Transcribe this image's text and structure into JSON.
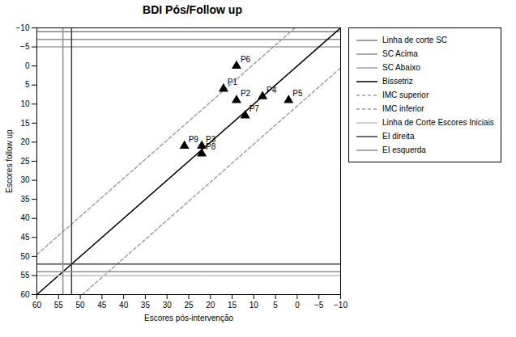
{
  "chart_data": {
    "type": "scatter",
    "title": "BDI Pós/Follow up",
    "xlabel": "Escores pós-intervenção",
    "ylabel": "Escores follow up",
    "xlim": [
      60,
      -10
    ],
    "ylim": [
      60,
      -10
    ],
    "xticks": [
      60,
      55,
      50,
      45,
      40,
      35,
      30,
      25,
      20,
      15,
      10,
      5,
      0,
      -5,
      -10
    ],
    "yticks": [
      -10,
      -5,
      0,
      5,
      10,
      15,
      20,
      25,
      30,
      35,
      40,
      45,
      50,
      55,
      60
    ],
    "grid": false,
    "legend": "right",
    "series": [
      {
        "name": "Linha de corte SC",
        "type": "line",
        "color": "#808080",
        "line_style": "solid",
        "x": [
          60,
          -10
        ],
        "y": [
          -9,
          -9
        ]
      },
      {
        "name": "SC Acima",
        "type": "line",
        "color": "#909090",
        "line_style": "solid",
        "x": [
          60,
          -10
        ],
        "y": [
          -7,
          -7
        ]
      },
      {
        "name": "SC Abaixo",
        "type": "line",
        "color": "#a0a0a0",
        "line_style": "solid",
        "x": [
          60,
          -10
        ],
        "y": [
          -5,
          -5
        ]
      },
      {
        "name": "Bissetriz",
        "type": "line",
        "color": "#000000",
        "line_style": "solid",
        "x": [
          60,
          -10
        ],
        "y": [
          60,
          -10
        ]
      },
      {
        "name": "IMC superior",
        "type": "line",
        "color": "#a0a0a0",
        "line_style": "dashed",
        "x": [
          60,
          0.5
        ],
        "y": [
          49.5,
          -10
        ]
      },
      {
        "name": "IMC inferior",
        "type": "line",
        "color": "#a0a0a0",
        "line_style": "dashed",
        "x": [
          49.5,
          -10
        ],
        "y": [
          60,
          0.5
        ]
      },
      {
        "name": "Linha de Corte Escores Iniciais",
        "type": "line",
        "color": "#c0c0c0",
        "line_style": "solid",
        "x": [
          60,
          -10
        ],
        "y": [
          55,
          55
        ]
      },
      {
        "name": "EI direita",
        "type": "line",
        "color": "#404040",
        "line_style": "solid",
        "x": [
          60,
          -10,
          null,
          52,
          52
        ],
        "y": [
          52,
          52,
          null,
          60,
          -10
        ]
      },
      {
        "name": "EI esquerda",
        "type": "line",
        "color": "#909090",
        "line_style": "solid",
        "x": [
          60,
          -10,
          null,
          54,
          54
        ],
        "y": [
          54,
          54,
          null,
          60,
          -10
        ]
      }
    ],
    "points": {
      "labels": [
        "P1",
        "P2",
        "P3",
        "P4",
        "P5",
        "P6",
        "P7",
        "P8",
        "P9"
      ],
      "x": [
        17,
        14,
        22,
        8,
        2,
        14,
        12,
        22,
        26
      ],
      "y": [
        6,
        9,
        21,
        8,
        9,
        0,
        13,
        23,
        21
      ],
      "color": "#000000",
      "marker": "triangle"
    }
  }
}
